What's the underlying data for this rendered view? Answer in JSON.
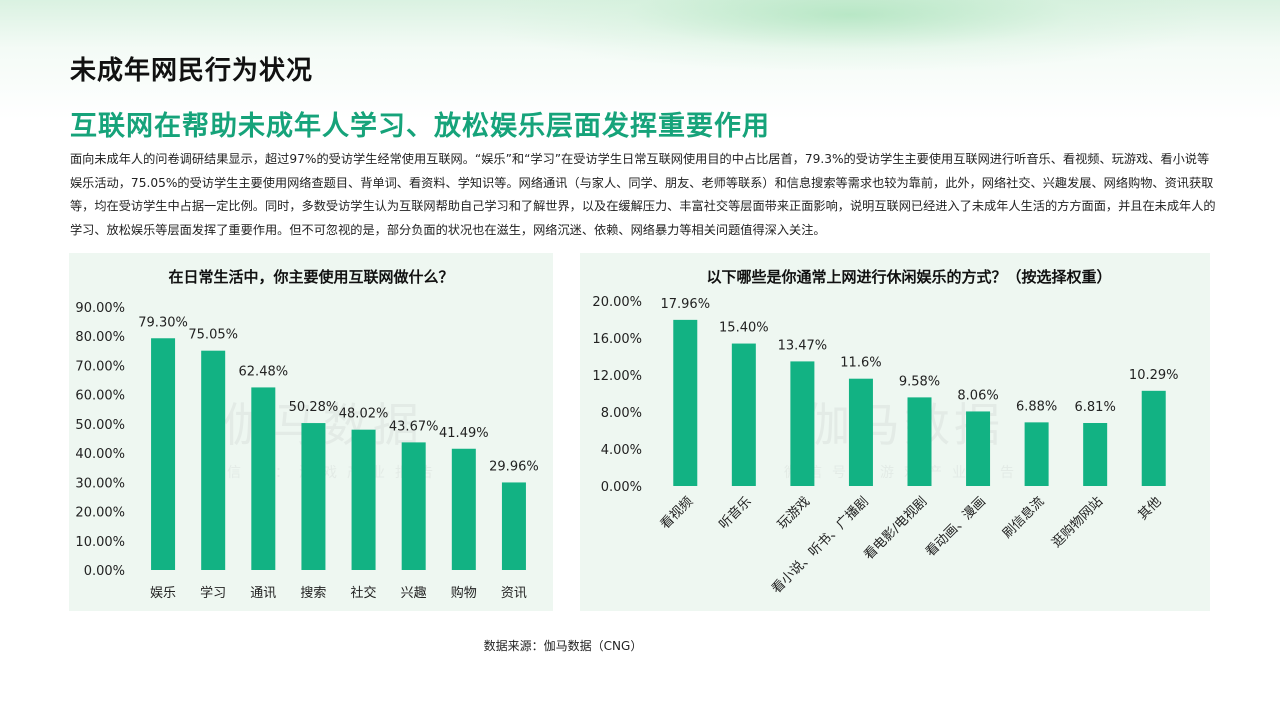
{
  "page": {
    "title": "未成年网民行为状况",
    "subtitle": "互联网在帮助未成年人学习、放松娱乐层面发挥重要作用",
    "paragraph": "面向未成年人的问卷调研结果显示，超过97%的受访学生经常使用互联网。“娱乐”和“学习”在受访学生日常互联网使用目的中占比居首，79.3%的受访学生主要使用互联网进行听音乐、看视频、玩游戏、看小说等娱乐活动，75.05%的受访学生主要使用网络查题目、背单词、看资料、学知识等。网络通讯（与家人、同学、朋友、老师等联系）和信息搜索等需求也较为靠前，此外，网络社交、兴趣发展、网络购物、资讯获取等，均在受访学生中占据一定比例。同时，多数受访学生认为互联网帮助自己学习和了解世界，以及在缓解压力、丰富社交等层面带来正面影响，说明互联网已经进入了未成年人生活的方方面面，并且在未成年人的学习、放松娱乐等层面发挥了重要作用。但不可忽视的是，部分负面的状况也在滋生，网络沉迷、依赖、网络暴力等相关问题值得深入关注。",
    "source": "数据来源：伽马数据（CNG）",
    "watermark": {
      "main": "伽马数据",
      "sub": "微信号：游戏产业报告"
    },
    "colors": {
      "bar": "#12b283",
      "accent": "#16a37a",
      "panel_bg": "#eef7f1"
    }
  },
  "chart_data": [
    {
      "type": "bar",
      "title": "在日常生活中，你主要使用互联网做什么？",
      "categories": [
        "娱乐",
        "学习",
        "通讯",
        "搜索",
        "社交",
        "兴趣",
        "购物",
        "资讯"
      ],
      "values": [
        79.3,
        75.05,
        62.48,
        50.28,
        48.02,
        43.67,
        41.49,
        29.96
      ],
      "value_labels": [
        "79.30%",
        "75.05%",
        "62.48%",
        "50.28%",
        "48.02%",
        "43.67%",
        "41.49%",
        "29.96%"
      ],
      "ylim": [
        0,
        90
      ],
      "yticks": [
        "0.00%",
        "10.00%",
        "20.00%",
        "30.00%",
        "40.00%",
        "50.00%",
        "60.00%",
        "70.00%",
        "80.00%",
        "90.00%"
      ],
      "grid": false,
      "xlabel": "",
      "ylabel": ""
    },
    {
      "type": "bar",
      "title": "以下哪些是你通常上网进行休闲娱乐的方式？（按选择权重）",
      "categories": [
        "看视频",
        "听音乐",
        "玩游戏",
        "看小说、听书、广播剧",
        "看电影/电视剧",
        "看动画、漫画",
        "刷信息流",
        "逛购物网站",
        "其他"
      ],
      "values": [
        17.96,
        15.4,
        13.47,
        11.6,
        9.58,
        8.06,
        6.88,
        6.81,
        10.29
      ],
      "value_labels": [
        "17.96%",
        "15.40%",
        "13.47%",
        "11.6%",
        "9.58%",
        "8.06%",
        "6.88%",
        "6.81%",
        "10.29%"
      ],
      "ylim": [
        0,
        20
      ],
      "yticks": [
        "0.00%",
        "4.00%",
        "8.00%",
        "12.00%",
        "16.00%",
        "20.00%"
      ],
      "grid": false,
      "xlabel": "",
      "ylabel": ""
    }
  ]
}
